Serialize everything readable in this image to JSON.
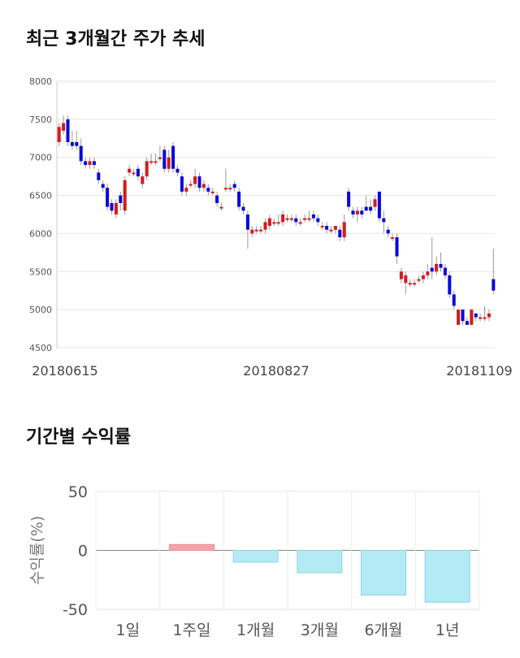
{
  "titles": {
    "price_trend": "최근 3개월간 주가 추세",
    "period_returns": "기간별 수익률"
  },
  "colors": {
    "up": "#d41c1c",
    "down": "#0a0ad8",
    "positive_bar": "#f4a3a8",
    "negative_bar": "#b4eaf3"
  },
  "chart_data": [
    {
      "type": "candlestick",
      "title": "최근 3개월간 주가 추세",
      "ylim": [
        4500,
        8000
      ],
      "yticks": [
        "8000",
        "7500",
        "7000",
        "6500",
        "6000",
        "5500",
        "5000",
        "4500"
      ],
      "xticks": [
        "20180615",
        "20180827",
        "20181109"
      ],
      "grid": true,
      "candles": [
        {
          "o": 7200,
          "c": 7400,
          "h": 7450,
          "l": 7150
        },
        {
          "o": 7350,
          "c": 7450,
          "h": 7550,
          "l": 7300
        },
        {
          "o": 7500,
          "c": 7200,
          "h": 7550,
          "l": 7150
        },
        {
          "o": 7200,
          "c": 7150,
          "h": 7350,
          "l": 7100
        },
        {
          "o": 7200,
          "c": 7150,
          "h": 7350,
          "l": 7100
        },
        {
          "o": 7150,
          "c": 6950,
          "h": 7250,
          "l": 6900
        },
        {
          "o": 6950,
          "c": 6900,
          "h": 7000,
          "l": 6850
        },
        {
          "o": 6900,
          "c": 6950,
          "h": 7000,
          "l": 6850
        },
        {
          "o": 6950,
          "c": 6900,
          "h": 7000,
          "l": 6850
        },
        {
          "o": 6800,
          "c": 6700,
          "h": 6850,
          "l": 6650
        },
        {
          "o": 6650,
          "c": 6600,
          "h": 6700,
          "l": 6550
        },
        {
          "o": 6600,
          "c": 6350,
          "h": 6650,
          "l": 6300
        },
        {
          "o": 6400,
          "c": 6300,
          "h": 6450,
          "l": 6250
        },
        {
          "o": 6250,
          "c": 6400,
          "h": 6450,
          "l": 6200
        },
        {
          "o": 6500,
          "c": 6400,
          "h": 6550,
          "l": 6300
        },
        {
          "o": 6300,
          "c": 6700,
          "h": 6750,
          "l": 6250
        },
        {
          "o": 6800,
          "c": 6850,
          "h": 6900,
          "l": 6750
        },
        {
          "o": 6800,
          "c": 6800,
          "h": 6850,
          "l": 6750
        },
        {
          "o": 6850,
          "c": 6750,
          "h": 6900,
          "l": 6700
        },
        {
          "o": 6650,
          "c": 6750,
          "h": 6800,
          "l": 6600
        },
        {
          "o": 6750,
          "c": 6950,
          "h": 7000,
          "l": 6700
        },
        {
          "o": 6950,
          "c": 6950,
          "h": 7050,
          "l": 6900
        },
        {
          "o": 6950,
          "c": 6950,
          "h": 7050,
          "l": 6900
        },
        {
          "o": 7000,
          "c": 7000,
          "h": 7150,
          "l": 6950
        },
        {
          "o": 7100,
          "c": 6850,
          "h": 7150,
          "l": 6800
        },
        {
          "o": 6850,
          "c": 7000,
          "h": 7100,
          "l": 6800
        },
        {
          "o": 7150,
          "c": 6850,
          "h": 7200,
          "l": 6800
        },
        {
          "o": 6850,
          "c": 6800,
          "h": 6900,
          "l": 6750
        },
        {
          "o": 6750,
          "c": 6550,
          "h": 6800,
          "l": 6500
        },
        {
          "o": 6550,
          "c": 6600,
          "h": 6650,
          "l": 6500
        },
        {
          "o": 6650,
          "c": 6650,
          "h": 6700,
          "l": 6600
        },
        {
          "o": 6650,
          "c": 6750,
          "h": 6850,
          "l": 6600
        },
        {
          "o": 6750,
          "c": 6600,
          "h": 6800,
          "l": 6550
        },
        {
          "o": 6600,
          "c": 6650,
          "h": 6700,
          "l": 6550
        },
        {
          "o": 6600,
          "c": 6550,
          "h": 6650,
          "l": 6500
        },
        {
          "o": 6550,
          "c": 6550,
          "h": 6600,
          "l": 6500
        },
        {
          "o": 6500,
          "c": 6400,
          "h": 6550,
          "l": 6350
        },
        {
          "o": 6350,
          "c": 6350,
          "h": 6400,
          "l": 6300
        },
        {
          "o": 6600,
          "c": 6600,
          "h": 6850,
          "l": 6550
        },
        {
          "o": 6600,
          "c": 6600,
          "h": 6650,
          "l": 6550
        },
        {
          "o": 6650,
          "c": 6600,
          "h": 6700,
          "l": 6550
        },
        {
          "o": 6550,
          "c": 6350,
          "h": 6600,
          "l": 6300
        },
        {
          "o": 6350,
          "c": 6300,
          "h": 6400,
          "l": 6250
        },
        {
          "o": 6250,
          "c": 6050,
          "h": 6300,
          "l": 5800
        },
        {
          "o": 6000,
          "c": 6050,
          "h": 6100,
          "l": 5950
        },
        {
          "o": 6050,
          "c": 6050,
          "h": 6100,
          "l": 6000
        },
        {
          "o": 6050,
          "c": 6050,
          "h": 6100,
          "l": 6000
        },
        {
          "o": 6050,
          "c": 6150,
          "h": 6200,
          "l": 6000
        },
        {
          "o": 6100,
          "c": 6200,
          "h": 6250,
          "l": 6050
        },
        {
          "o": 6150,
          "c": 6150,
          "h": 6200,
          "l": 6100
        },
        {
          "o": 6150,
          "c": 6150,
          "h": 6250,
          "l": 6100
        },
        {
          "o": 6150,
          "c": 6250,
          "h": 6300,
          "l": 6100
        },
        {
          "o": 6200,
          "c": 6200,
          "h": 6250,
          "l": 6150
        },
        {
          "o": 6200,
          "c": 6200,
          "h": 6250,
          "l": 6150
        },
        {
          "o": 6200,
          "c": 6150,
          "h": 6250,
          "l": 6100
        },
        {
          "o": 6150,
          "c": 6150,
          "h": 6200,
          "l": 6100
        },
        {
          "o": 6200,
          "c": 6200,
          "h": 6250,
          "l": 6150
        },
        {
          "o": 6200,
          "c": 6200,
          "h": 6300,
          "l": 6150
        },
        {
          "o": 6250,
          "c": 6200,
          "h": 6300,
          "l": 6150
        },
        {
          "o": 6200,
          "c": 6150,
          "h": 6250,
          "l": 6100
        },
        {
          "o": 6100,
          "c": 6100,
          "h": 6150,
          "l": 6050
        },
        {
          "o": 6100,
          "c": 6050,
          "h": 6150,
          "l": 6000
        },
        {
          "o": 6050,
          "c": 6050,
          "h": 6100,
          "l": 6000
        },
        {
          "o": 6050,
          "c": 6100,
          "h": 6100,
          "l": 6000
        },
        {
          "o": 6050,
          "c": 5950,
          "h": 6100,
          "l": 5900
        },
        {
          "o": 5950,
          "c": 6150,
          "h": 6250,
          "l": 5900
        },
        {
          "o": 6550,
          "c": 6350,
          "h": 6600,
          "l": 6300
        },
        {
          "o": 6300,
          "c": 6250,
          "h": 6350,
          "l": 6200
        },
        {
          "o": 6250,
          "c": 6300,
          "h": 6350,
          "l": 6150
        },
        {
          "o": 6300,
          "c": 6250,
          "h": 6350,
          "l": 6200
        },
        {
          "o": 6350,
          "c": 6300,
          "h": 6500,
          "l": 6300
        },
        {
          "o": 6350,
          "c": 6300,
          "h": 6450,
          "l": 6250
        },
        {
          "o": 6350,
          "c": 6450,
          "h": 6500,
          "l": 6300
        },
        {
          "o": 6550,
          "c": 6200,
          "h": 6550,
          "l": 6150
        },
        {
          "o": 6200,
          "c": 6150,
          "h": 6300,
          "l": 6000
        },
        {
          "o": 6050,
          "c": 6000,
          "h": 6100,
          "l": 5950
        },
        {
          "o": 5950,
          "c": 5950,
          "h": 6000,
          "l": 5900
        },
        {
          "o": 5950,
          "c": 5700,
          "h": 6000,
          "l": 5600
        },
        {
          "o": 5400,
          "c": 5500,
          "h": 5550,
          "l": 5350
        },
        {
          "o": 5350,
          "c": 5450,
          "h": 5500,
          "l": 5200
        },
        {
          "o": 5350,
          "c": 5350,
          "h": 5400,
          "l": 5300
        },
        {
          "o": 5350,
          "c": 5350,
          "h": 5400,
          "l": 5300
        },
        {
          "o": 5400,
          "c": 5400,
          "h": 5450,
          "l": 5350
        },
        {
          "o": 5400,
          "c": 5450,
          "h": 5500,
          "l": 5350
        },
        {
          "o": 5450,
          "c": 5500,
          "h": 5600,
          "l": 5400
        },
        {
          "o": 5550,
          "c": 5500,
          "h": 5950,
          "l": 5400
        },
        {
          "o": 5500,
          "c": 5600,
          "h": 5700,
          "l": 5450
        },
        {
          "o": 5600,
          "c": 5550,
          "h": 5750,
          "l": 5500
        },
        {
          "o": 5550,
          "c": 5450,
          "h": 5600,
          "l": 5400
        },
        {
          "o": 5450,
          "c": 5200,
          "h": 5500,
          "l": 5150
        },
        {
          "o": 5200,
          "c": 5050,
          "h": 5250,
          "l": 5000
        },
        {
          "o": 4800,
          "c": 5000,
          "h": 5000,
          "l": 4800
        },
        {
          "o": 5000,
          "c": 4850,
          "h": 5000,
          "l": 4800
        },
        {
          "o": 4850,
          "c": 4800,
          "h": 4900,
          "l": 4800
        },
        {
          "o": 4800,
          "c": 5000,
          "h": 5000,
          "l": 4800
        },
        {
          "o": 4950,
          "c": 4900,
          "h": 4950,
          "l": 4850
        },
        {
          "o": 4900,
          "c": 4900,
          "h": 4950,
          "l": 4850
        },
        {
          "o": 4900,
          "c": 4900,
          "h": 5050,
          "l": 4850
        },
        {
          "o": 4900,
          "c": 4950,
          "h": 5000,
          "l": 4850
        },
        {
          "o": 5400,
          "c": 5250,
          "h": 5800,
          "l": 5200
        }
      ]
    },
    {
      "type": "bar",
      "title": "기간별 수익률",
      "ylabel": "수익률(%)",
      "ylim": [
        -50,
        50
      ],
      "yticks": [
        "50",
        "0",
        "-50"
      ],
      "categories": [
        "1일",
        "1주일",
        "1개월",
        "3개월",
        "6개월",
        "1년"
      ],
      "values": [
        0,
        5,
        -10,
        -19,
        -38,
        -44
      ],
      "grid": true
    }
  ]
}
